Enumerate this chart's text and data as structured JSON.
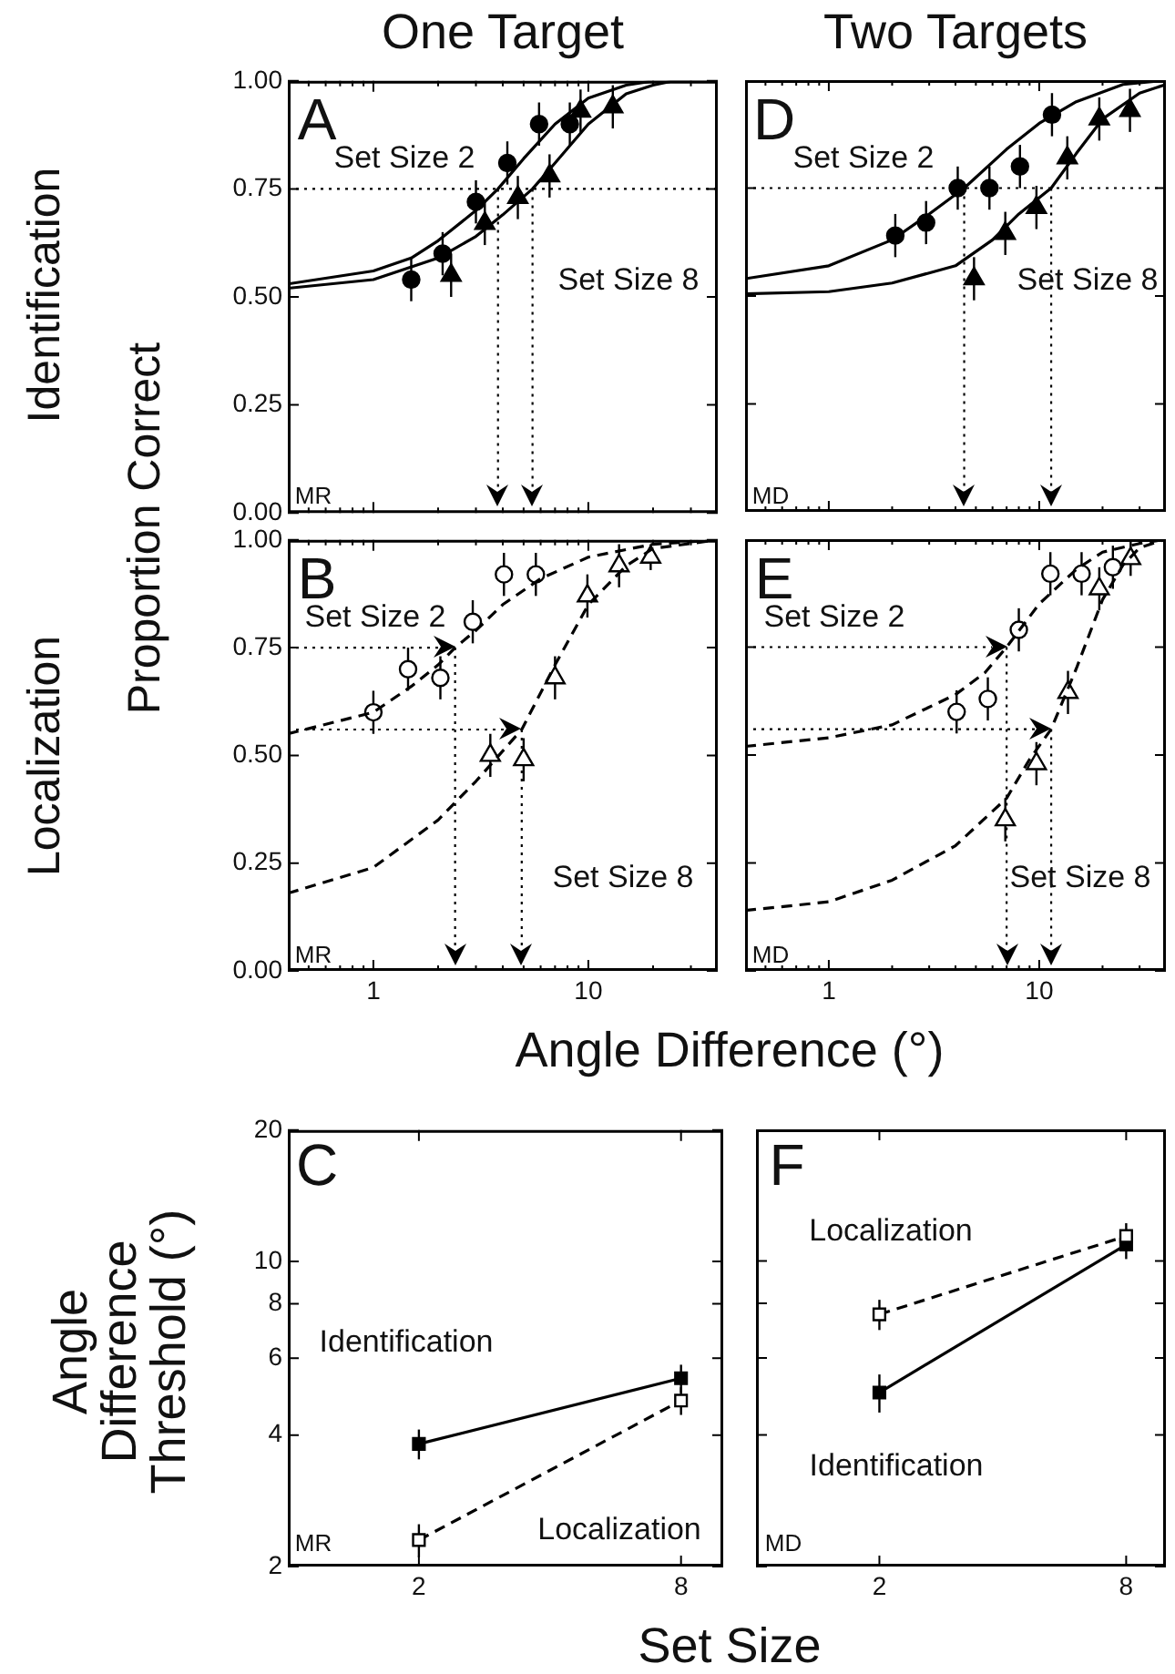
{
  "chart_data": [
    {
      "type": "scatter",
      "title": "One Target",
      "ylabel": "Proportion Correct",
      "log": "x",
      "xlim": [
        0.4,
        40
      ],
      "ylim": [
        0,
        1
      ],
      "xticks": [
        {
          "value": 0.5,
          "label": null
        },
        {
          "value": 0.6,
          "label": null
        },
        {
          "value": 0.7,
          "label": null
        },
        {
          "value": 0.8,
          "label": null
        },
        {
          "value": 0.9,
          "label": null
        },
        1,
        {
          "value": 2,
          "label": null
        },
        {
          "value": 3,
          "label": null
        },
        {
          "value": 4,
          "label": null
        },
        {
          "value": 5,
          "label": null
        },
        {
          "value": 6,
          "label": null
        },
        {
          "value": 7,
          "label": null
        },
        {
          "value": 8,
          "label": null
        },
        {
          "value": 9,
          "label": null
        },
        10,
        {
          "value": 20,
          "label": null
        },
        {
          "value": 30,
          "label": null
        }
      ],
      "yticks": [
        {
          "value": 0,
          "label": "0.00"
        },
        {
          "value": 0.25,
          "label": "0.25"
        },
        {
          "value": 0.5,
          "label": "0.50"
        },
        {
          "value": 0.75,
          "label": "0.75"
        },
        {
          "value": 1,
          "label": "1.00"
        }
      ],
      "tick_labels": "y",
      "grid": false,
      "legend": false,
      "series": [
        {
          "marker": "circle",
          "color": "#000000",
          "x": [
            1.5,
            2.1,
            3.0,
            4.2,
            5.9,
            8.2
          ],
          "values": [
            0.54,
            0.6,
            0.72,
            0.81,
            0.9,
            0.9
          ],
          "errors": [
            0.05,
            0.05,
            0.05,
            0.05,
            0.05,
            0.05
          ]
        },
        {
          "marker": "triangle",
          "color": "#000000",
          "x": [
            2.3,
            3.3,
            4.7,
            6.6,
            9.2,
            13
          ],
          "values": [
            0.55,
            0.67,
            0.73,
            0.78,
            0.93,
            0.94
          ],
          "errors": [
            0.05,
            0.05,
            0.05,
            0.05,
            0.05,
            0.05
          ]
        },
        {
          "type": "line",
          "marker": "none",
          "line_style": "solid",
          "color": "#000000",
          "x": [
            0.4,
            1,
            1.5,
            2,
            3,
            3.8,
            5,
            7,
            10,
            15,
            20,
            40
          ],
          "values": [
            0.53,
            0.56,
            0.59,
            0.63,
            0.7,
            0.75,
            0.82,
            0.9,
            0.96,
            0.99,
            1.0,
            1.0
          ]
        },
        {
          "type": "line",
          "marker": "none",
          "line_style": "solid",
          "color": "#000000",
          "x": [
            0.4,
            1,
            2,
            3,
            4,
            5.5,
            7,
            10,
            15,
            20,
            25,
            40
          ],
          "values": [
            0.52,
            0.54,
            0.59,
            0.64,
            0.69,
            0.75,
            0.81,
            0.9,
            0.97,
            0.99,
            1.0,
            1.0
          ]
        }
      ],
      "ref_lines": [
        {
          "axis": "y",
          "value": 0.75,
          "line_style": "dotted"
        },
        {
          "axis": "x",
          "value": 3.8,
          "line_style": "dotted"
        },
        {
          "axis": "x",
          "value": 5.5,
          "line_style": "dotted"
        }
      ],
      "annotations": [
        "A",
        "MR",
        "Identification",
        "Set Size 2",
        "Set Size 8"
      ]
    },
    {
      "type": "scatter",
      "title": "Two Targets",
      "log": "x",
      "xlim": [
        0.4,
        40
      ],
      "ylim": [
        0,
        1
      ],
      "xticks": [
        {
          "value": 0.5,
          "label": null
        },
        {
          "value": 0.6,
          "label": null
        },
        {
          "value": 0.7,
          "label": null
        },
        {
          "value": 0.8,
          "label": null
        },
        {
          "value": 0.9,
          "label": null
        },
        1,
        {
          "value": 2,
          "label": null
        },
        {
          "value": 3,
          "label": null
        },
        {
          "value": 4,
          "label": null
        },
        {
          "value": 5,
          "label": null
        },
        {
          "value": 6,
          "label": null
        },
        {
          "value": 7,
          "label": null
        },
        {
          "value": 8,
          "label": null
        },
        {
          "value": 9,
          "label": null
        },
        10,
        {
          "value": 20,
          "label": null
        },
        {
          "value": 30,
          "label": null
        }
      ],
      "yticks": [
        0,
        0.25,
        0.5,
        0.75,
        1
      ],
      "tick_labels": false,
      "grid": false,
      "legend": false,
      "series": [
        {
          "marker": "circle",
          "color": "#000000",
          "x": [
            2.07,
            2.9,
            4.1,
            5.8,
            8.1,
            11.5
          ],
          "values": [
            0.64,
            0.67,
            0.75,
            0.75,
            0.8,
            0.92
          ],
          "errors": [
            0.05,
            0.05,
            0.05,
            0.05,
            0.05,
            0.05
          ]
        },
        {
          "marker": "triangle",
          "color": "#000000",
          "x": [
            4.9,
            6.9,
            9.7,
            13.6,
            19.3,
            27
          ],
          "values": [
            0.54,
            0.645,
            0.705,
            0.82,
            0.91,
            0.93
          ],
          "errors": [
            0.05,
            0.05,
            0.05,
            0.05,
            0.05,
            0.05
          ]
        },
        {
          "type": "line",
          "marker": "none",
          "line_style": "solid",
          "color": "#000000",
          "x": [
            0.4,
            1,
            2,
            3,
            4.4,
            7,
            10,
            15,
            25,
            40
          ],
          "values": [
            0.54,
            0.57,
            0.63,
            0.69,
            0.75,
            0.84,
            0.9,
            0.95,
            0.99,
            1.0
          ]
        },
        {
          "type": "line",
          "marker": "none",
          "line_style": "solid",
          "color": "#000000",
          "x": [
            0.4,
            1,
            2,
            4,
            6,
            8,
            11.4,
            15,
            20,
            30,
            40
          ],
          "values": [
            0.505,
            0.51,
            0.53,
            0.57,
            0.63,
            0.69,
            0.75,
            0.83,
            0.91,
            0.97,
            0.99
          ]
        }
      ],
      "ref_lines": [
        {
          "axis": "y",
          "value": 0.75,
          "line_style": "dotted"
        },
        {
          "axis": "x",
          "value": 4.4,
          "line_style": "dotted"
        },
        {
          "axis": "x",
          "value": 11.4,
          "line_style": "dotted"
        }
      ],
      "annotations": [
        "D",
        "MD",
        "Set Size 2",
        "Set Size 8"
      ]
    },
    {
      "type": "scatter",
      "xlabel": "Angle Difference (°)",
      "log": "x",
      "xlim": [
        0.4,
        40
      ],
      "ylim": [
        0,
        1
      ],
      "xticks": [
        {
          "value": 0.5,
          "label": null
        },
        {
          "value": 0.6,
          "label": null
        },
        {
          "value": 0.7,
          "label": null
        },
        {
          "value": 0.8,
          "label": null
        },
        {
          "value": 0.9,
          "label": null
        },
        1,
        {
          "value": 2,
          "label": null
        },
        {
          "value": 3,
          "label": null
        },
        {
          "value": 4,
          "label": null
        },
        {
          "value": 5,
          "label": null
        },
        {
          "value": 6,
          "label": null
        },
        {
          "value": 7,
          "label": null
        },
        {
          "value": 8,
          "label": null
        },
        {
          "value": 9,
          "label": null
        },
        10,
        {
          "value": 20,
          "label": null
        },
        {
          "value": 30,
          "label": null
        }
      ],
      "yticks": [
        {
          "value": 0,
          "label": "0.00"
        },
        {
          "value": 0.25,
          "label": "0.25"
        },
        {
          "value": 0.5,
          "label": "0.50"
        },
        {
          "value": 0.75,
          "label": "0.75"
        },
        {
          "value": 1,
          "label": "1.00"
        }
      ],
      "grid": false,
      "legend": false,
      "series": [
        {
          "marker": "circle",
          "color": "#ffffff",
          "x": [
            1.0,
            1.45,
            2.05,
            2.9,
            4.05,
            5.7
          ],
          "values": [
            0.6,
            0.7,
            0.68,
            0.81,
            0.92,
            0.92
          ],
          "errors": [
            0.05,
            0.05,
            0.05,
            0.05,
            0.05,
            0.05
          ]
        },
        {
          "marker": "triangle",
          "color": "#ffffff",
          "x": [
            3.5,
            5.0,
            7.0,
            9.9,
            13.9,
            19.5
          ],
          "values": [
            0.5,
            0.49,
            0.68,
            0.87,
            0.94,
            0.96
          ],
          "errors": [
            0.05,
            0.05,
            0.05,
            0.05,
            0.05,
            0.03
          ]
        },
        {
          "type": "line",
          "marker": "none",
          "line_style": "dashed",
          "color": "#000000",
          "x": [
            0.4,
            1,
            1.5,
            2,
            2.4,
            3,
            4,
            6,
            10,
            20,
            40
          ],
          "values": [
            0.55,
            0.6,
            0.66,
            0.71,
            0.75,
            0.79,
            0.85,
            0.91,
            0.96,
            0.99,
            1.0
          ]
        },
        {
          "type": "line",
          "marker": "none",
          "line_style": "dashed",
          "color": "#000000",
          "x": [
            0.4,
            1,
            2,
            3,
            4.9,
            7,
            10,
            15,
            20,
            40
          ],
          "values": [
            0.18,
            0.24,
            0.35,
            0.44,
            0.56,
            0.71,
            0.85,
            0.94,
            0.98,
            1.0
          ]
        }
      ],
      "ref_lines": [
        {
          "axis": "y",
          "value": 0.75,
          "line_style": "dotted"
        },
        {
          "axis": "y",
          "value": 0.56,
          "line_style": "dotted"
        },
        {
          "axis": "x",
          "value": 2.4,
          "line_style": "dotted"
        },
        {
          "axis": "x",
          "value": 4.9,
          "line_style": "dotted"
        }
      ],
      "annotations": [
        "B",
        "MR",
        "Localization",
        "Set Size 2",
        "Set Size 8"
      ]
    },
    {
      "type": "scatter",
      "log": "x",
      "xlim": [
        0.4,
        40
      ],
      "ylim": [
        0,
        1
      ],
      "xticks": [
        {
          "value": 0.5,
          "label": null
        },
        {
          "value": 0.6,
          "label": null
        },
        {
          "value": 0.7,
          "label": null
        },
        {
          "value": 0.8,
          "label": null
        },
        {
          "value": 0.9,
          "label": null
        },
        1,
        {
          "value": 2,
          "label": null
        },
        {
          "value": 3,
          "label": null
        },
        {
          "value": 4,
          "label": null
        },
        {
          "value": 5,
          "label": null
        },
        {
          "value": 6,
          "label": null
        },
        {
          "value": 7,
          "label": null
        },
        {
          "value": 8,
          "label": null
        },
        {
          "value": 9,
          "label": null
        },
        10,
        {
          "value": 20,
          "label": null
        },
        {
          "value": 30,
          "label": null
        }
      ],
      "yticks": [
        0,
        0.25,
        0.5,
        0.75,
        1
      ],
      "tick_labels": "x",
      "grid": false,
      "legend": false,
      "series": [
        {
          "marker": "circle",
          "color": "#ffffff",
          "x": [
            4.05,
            5.7,
            8.0,
            11.3,
            15.9,
            22.4
          ],
          "values": [
            0.6,
            0.63,
            0.79,
            0.92,
            0.92,
            0.935
          ],
          "errors": [
            0.05,
            0.05,
            0.05,
            0.05,
            0.05,
            0.05
          ]
        },
        {
          "marker": "triangle",
          "color": "#ffffff",
          "x": [
            6.9,
            9.7,
            13.7,
            19.3,
            27.2
          ],
          "values": [
            0.35,
            0.48,
            0.645,
            0.885,
            0.955
          ],
          "errors": [
            0.05,
            0.05,
            0.05,
            0.05,
            0.04
          ]
        },
        {
          "type": "line",
          "marker": "none",
          "line_style": "dashed",
          "color": "#000000",
          "x": [
            0.4,
            1,
            2,
            4,
            5.5,
            7,
            10,
            15,
            20,
            30,
            40
          ],
          "values": [
            0.52,
            0.54,
            0.57,
            0.64,
            0.69,
            0.75,
            0.85,
            0.93,
            0.97,
            0.99,
            1.0
          ]
        },
        {
          "type": "line",
          "marker": "none",
          "line_style": "dashed",
          "color": "#000000",
          "x": [
            0.4,
            1,
            2,
            4,
            7,
            9,
            11.4,
            15,
            20,
            25,
            30,
            40
          ],
          "values": [
            0.14,
            0.16,
            0.21,
            0.29,
            0.4,
            0.49,
            0.56,
            0.7,
            0.86,
            0.94,
            0.98,
            1.0
          ]
        }
      ],
      "ref_lines": [
        {
          "axis": "y",
          "value": 0.75,
          "line_style": "dotted"
        },
        {
          "axis": "y",
          "value": 0.56,
          "line_style": "dotted"
        },
        {
          "axis": "x",
          "value": 7.0,
          "line_style": "dotted"
        },
        {
          "axis": "x",
          "value": 11.4,
          "line_style": "dotted"
        }
      ],
      "annotations": [
        "E",
        "MD",
        "Set Size 2",
        "Set Size 8"
      ]
    },
    {
      "type": "line",
      "xlabel": "Set Size",
      "ylabel": "Angle Difference Threshold (°)",
      "log": "xy",
      "xlim": [
        1,
        10
      ],
      "ylim": [
        2,
        20
      ],
      "xticks": [
        2,
        8
      ],
      "yticks": [
        2,
        4,
        6,
        8,
        10,
        20
      ],
      "grid": false,
      "legend": false,
      "series": [
        {
          "marker": "square",
          "line_style": "solid",
          "color": "#000000",
          "x": [
            2,
            8
          ],
          "values": [
            3.82,
            5.4
          ],
          "errors": [
            0.3,
            0.4
          ]
        },
        {
          "marker": "square",
          "line_style": "dashed",
          "color": "#000000",
          "x": [
            2,
            8
          ],
          "values": [
            2.3,
            4.8
          ],
          "errors": [
            0.2,
            0.35
          ]
        }
      ],
      "annotations": [
        "C",
        "MR",
        "Identification",
        "Localization"
      ]
    },
    {
      "type": "line",
      "log": "xy",
      "xlim": [
        1,
        10
      ],
      "ylim": [
        2,
        20
      ],
      "xticks": [
        2,
        8
      ],
      "yticks": [
        2,
        4,
        6,
        8,
        10,
        20
      ],
      "tick_labels": "x",
      "grid": false,
      "legend": false,
      "series": [
        {
          "marker": "square",
          "line_style": "solid",
          "color": "#000000",
          "x": [
            2,
            8
          ],
          "values": [
            5.0,
            10.9
          ],
          "errors": [
            0.5,
            0.8
          ]
        },
        {
          "marker": "square",
          "line_style": "dashed",
          "color": "#000000",
          "x": [
            2,
            8
          ],
          "values": [
            7.55,
            11.4
          ],
          "errors": [
            0.6,
            0.8
          ]
        }
      ],
      "annotations": [
        "F",
        "MD",
        "Localization",
        "Identification"
      ]
    }
  ]
}
